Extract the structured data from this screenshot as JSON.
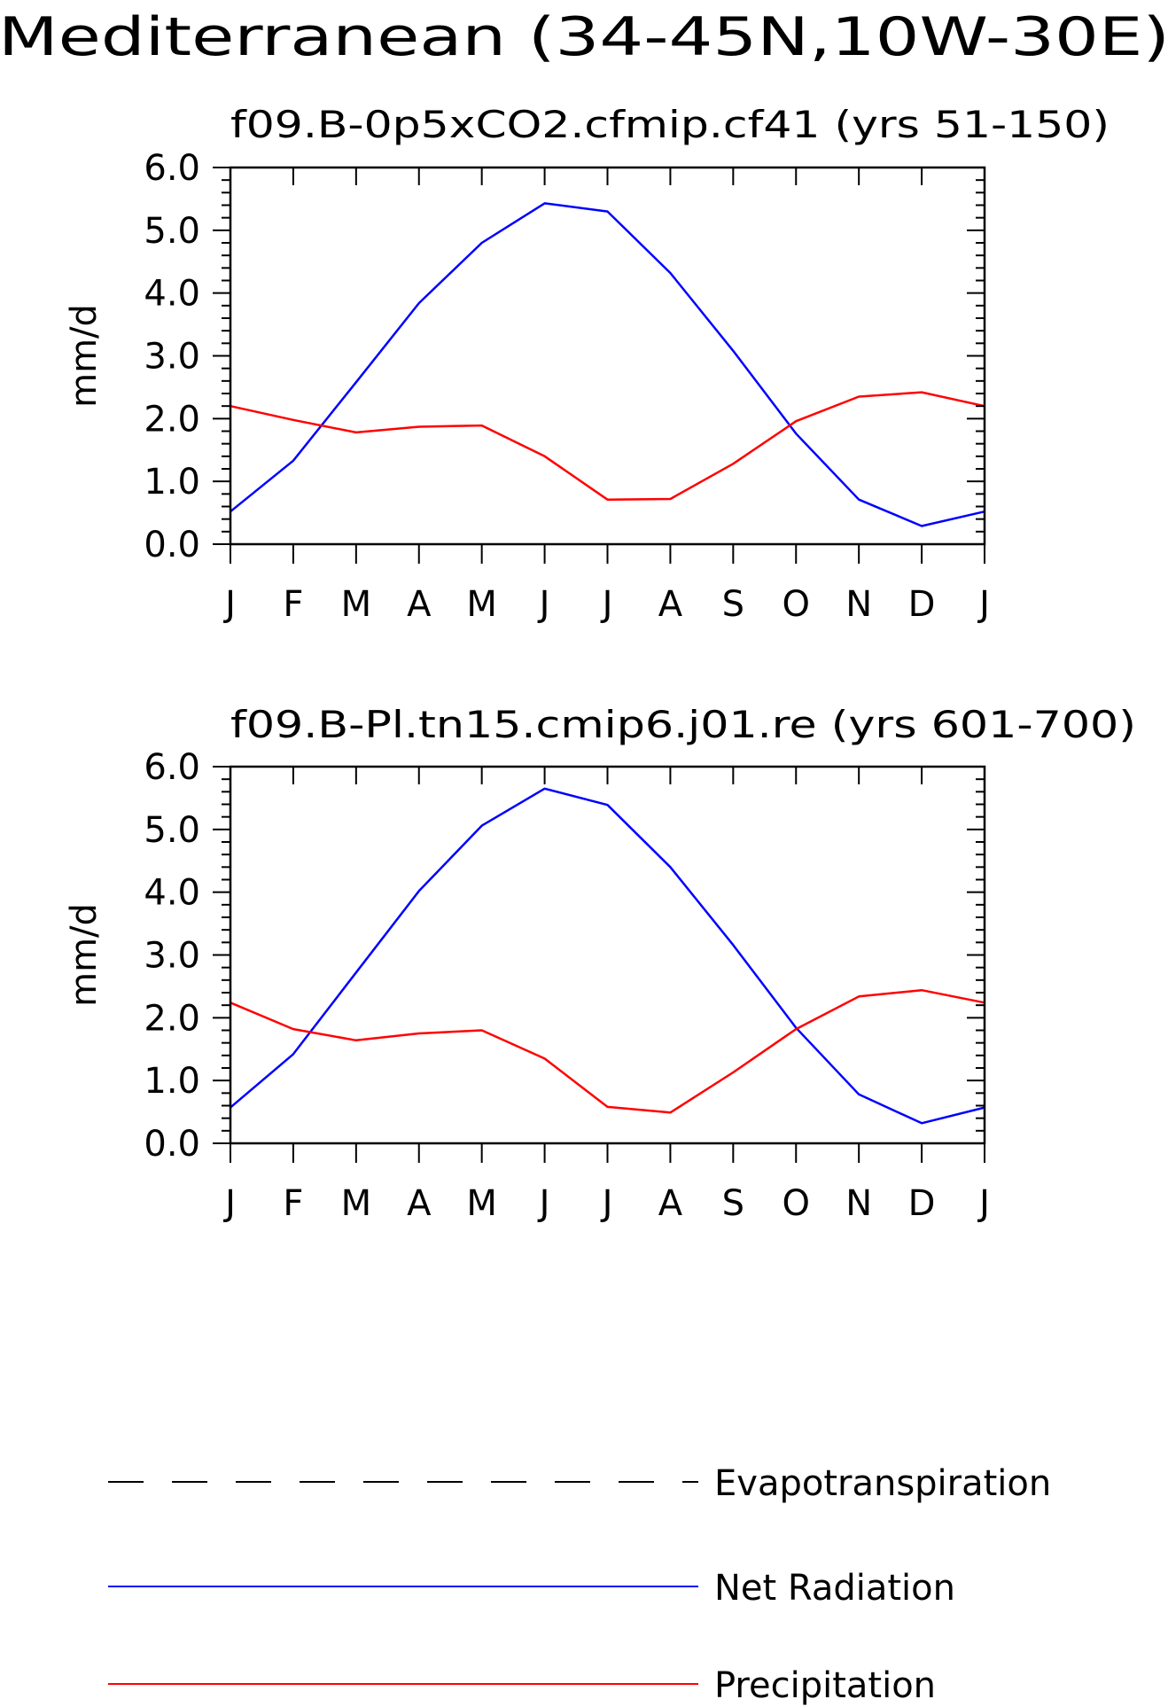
{
  "page_title": "Mediterranean (34-45N,10W-30E)",
  "chart_data": [
    {
      "type": "line",
      "title": "f09.B-0p5xCO2.cfmip.cf41 (yrs 51-150)",
      "xlabel": "",
      "ylabel": "mm/d",
      "categories": [
        "J",
        "F",
        "M",
        "A",
        "M",
        "J",
        "J",
        "A",
        "S",
        "O",
        "N",
        "D",
        "J"
      ],
      "yticks": [
        "0.0",
        "1.0",
        "2.0",
        "3.0",
        "4.0",
        "5.0",
        "6.0"
      ],
      "ylim": [
        0,
        6
      ],
      "series": [
        {
          "name": "Net Radiation",
          "color": "#0000ff",
          "values": [
            0.52,
            1.33,
            2.58,
            3.84,
            4.8,
            5.43,
            5.3,
            4.32,
            3.08,
            1.76,
            0.71,
            0.29,
            0.52
          ]
        },
        {
          "name": "Precipitation",
          "color": "#ff0000",
          "values": [
            2.2,
            1.98,
            1.78,
            1.87,
            1.89,
            1.4,
            0.71,
            0.72,
            1.28,
            1.96,
            2.35,
            2.42,
            2.2
          ]
        }
      ]
    },
    {
      "type": "line",
      "title": "f09.B-Pl.tn15.cmip6.j01.re (yrs 601-700)",
      "xlabel": "",
      "ylabel": "mm/d",
      "categories": [
        "J",
        "F",
        "M",
        "A",
        "M",
        "J",
        "J",
        "A",
        "S",
        "O",
        "N",
        "D",
        "J"
      ],
      "yticks": [
        "0.0",
        "1.0",
        "2.0",
        "3.0",
        "4.0",
        "5.0",
        "6.0"
      ],
      "ylim": [
        0,
        6
      ],
      "series": [
        {
          "name": "Net Radiation",
          "color": "#0000ff",
          "values": [
            0.57,
            1.42,
            2.72,
            4.02,
            5.06,
            5.65,
            5.39,
            4.4,
            3.16,
            1.84,
            0.78,
            0.32,
            0.57
          ]
        },
        {
          "name": "Precipitation",
          "color": "#ff0000",
          "values": [
            2.24,
            1.82,
            1.64,
            1.75,
            1.8,
            1.35,
            0.58,
            0.49,
            1.13,
            1.82,
            2.34,
            2.44,
            2.24
          ]
        }
      ]
    }
  ],
  "legend": {
    "items": [
      {
        "label": "Evapotranspiration",
        "color": "#000000",
        "style": "dashed"
      },
      {
        "label": "Net Radiation",
        "color": "#0000ff",
        "style": "solid"
      },
      {
        "label": "Precipitation",
        "color": "#ff0000",
        "style": "solid"
      }
    ]
  }
}
